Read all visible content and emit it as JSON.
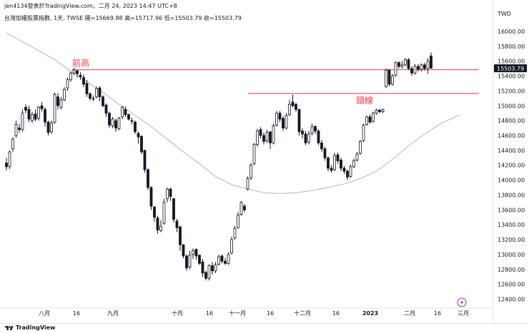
{
  "attribution": "jen4134發表於TradingView.com，二月 24, 2023 14:47 UTC+8",
  "symbol": {
    "name": "台灣加權股票指數",
    "interval": "1天",
    "exchange": "TWSE",
    "open_label": "開=",
    "open": "15669.88",
    "high_label": "高=",
    "high": "15717.96",
    "low_label": "低=",
    "low": "15503.79",
    "close_label": "收=",
    "close": "15503.79"
  },
  "footer": {
    "brand": "TradingView"
  },
  "colors": {
    "up_candle": "#ffffff",
    "down_candle": "#131722",
    "wick": "#131722",
    "moving_average": "#b2b5be",
    "annotation_line": "#f23645",
    "annotation_text": "#f23645",
    "price_tag": "#131722",
    "lightning_badge": "#9c27b0"
  },
  "chart_data": {
    "type": "candlestick",
    "currency": "TWD",
    "ylim": [
      12200,
      16300
    ],
    "yticks": [
      "16000.00",
      "15800.00",
      "15600.00",
      "15400.00",
      "15200.00",
      "15000.00",
      "14800.00",
      "14600.00",
      "14400.00",
      "14200.00",
      "14000.00",
      "13800.00",
      "13600.00",
      "13400.00",
      "13200.00",
      "13000.00",
      "12800.00",
      "12600.00",
      "12400.00"
    ],
    "xticks": [
      "八月",
      "16",
      "九月",
      "16",
      "十月",
      "16",
      "十一月",
      "16",
      "十二月",
      "16",
      "2023",
      "二月",
      "16",
      "三月"
    ],
    "last_price": "15503.79",
    "annotations": [
      {
        "label": "前高",
        "value": 15485,
        "from": 19,
        "to": 145
      },
      {
        "label": "頸線",
        "value": 15165,
        "from": 76,
        "to": 145
      }
    ],
    "moving_average": [
      [
        0,
        15980
      ],
      [
        5,
        15860
      ],
      [
        10,
        15740
      ],
      [
        15,
        15620
      ],
      [
        20,
        15460
      ],
      [
        25,
        15320
      ],
      [
        30,
        15180
      ],
      [
        35,
        15020
      ],
      [
        40,
        14870
      ],
      [
        45,
        14720
      ],
      [
        50,
        14550
      ],
      [
        55,
        14380
      ],
      [
        60,
        14220
      ],
      [
        65,
        14050
      ],
      [
        70,
        13940
      ],
      [
        75,
        13880
      ],
      [
        80,
        13830
      ],
      [
        85,
        13820
      ],
      [
        90,
        13830
      ],
      [
        95,
        13860
      ],
      [
        100,
        13900
      ],
      [
        105,
        13950
      ],
      [
        110,
        14020
      ],
      [
        115,
        14120
      ],
      [
        120,
        14280
      ],
      [
        125,
        14460
      ],
      [
        130,
        14620
      ],
      [
        135,
        14760
      ],
      [
        138,
        14820
      ],
      [
        141,
        14880
      ]
    ],
    "candles": [
      [
        14230,
        14180,
        14300,
        14130
      ],
      [
        14180,
        14380,
        14400,
        14150
      ],
      [
        14420,
        14550,
        14580,
        14380
      ],
      [
        14600,
        14750,
        14800,
        14570
      ],
      [
        14700,
        14680,
        14760,
        14640
      ],
      [
        14680,
        14900,
        14950,
        14650
      ],
      [
        14980,
        14940,
        15020,
        14900
      ],
      [
        14950,
        14820,
        15000,
        14780
      ],
      [
        14800,
        14880,
        14920,
        14770
      ],
      [
        14890,
        14820,
        14950,
        14790
      ],
      [
        14830,
        14980,
        15000,
        14800
      ],
      [
        15000,
        14960,
        15050,
        14920
      ],
      [
        14950,
        14780,
        14980,
        14720
      ],
      [
        14780,
        14640,
        14800,
        14600
      ],
      [
        14650,
        14770,
        14800,
        14620
      ],
      [
        14780,
        15150,
        15180,
        14760
      ],
      [
        15120,
        15000,
        15170,
        14950
      ],
      [
        14980,
        15080,
        15120,
        14950
      ],
      [
        15080,
        15220,
        15250,
        15060
      ],
      [
        15240,
        15350,
        15380,
        15200
      ],
      [
        15350,
        15440,
        15460,
        15320
      ],
      [
        15440,
        15480,
        15510,
        15410
      ],
      [
        15470,
        15430,
        15480,
        15380
      ],
      [
        15410,
        15390,
        15450,
        15350
      ],
      [
        15380,
        15290,
        15420,
        15250
      ],
      [
        15300,
        15160,
        15350,
        15120
      ],
      [
        15160,
        15100,
        15180,
        15070
      ],
      [
        15100,
        15090,
        15140,
        15060
      ],
      [
        15120,
        15230,
        15260,
        15100
      ],
      [
        15240,
        15120,
        15260,
        15060
      ],
      [
        15120,
        15000,
        15140,
        14980
      ],
      [
        15010,
        14900,
        15030,
        14850
      ],
      [
        14900,
        14740,
        14920,
        14700
      ],
      [
        14730,
        14820,
        14850,
        14700
      ],
      [
        14800,
        14700,
        14830,
        14650
      ],
      [
        14690,
        14830,
        14850,
        14670
      ],
      [
        14850,
        14980,
        15000,
        14820
      ],
      [
        14950,
        14880,
        14990,
        14850
      ],
      [
        14880,
        14820,
        14900,
        14800
      ],
      [
        14800,
        14790,
        14840,
        14750
      ],
      [
        14780,
        14650,
        14800,
        14620
      ],
      [
        14630,
        14580,
        14650,
        14490
      ],
      [
        14590,
        14380,
        14600,
        14350
      ],
      [
        14400,
        14140,
        14410,
        14100
      ],
      [
        14140,
        13900,
        14160,
        13870
      ],
      [
        13900,
        13650,
        13920,
        13600
      ],
      [
        13640,
        13500,
        13650,
        13440
      ],
      [
        13490,
        13330,
        13520,
        13280
      ],
      [
        13320,
        13380,
        13460,
        13300
      ],
      [
        13420,
        13700,
        13750,
        13400
      ],
      [
        13750,
        13880,
        13900,
        13700
      ],
      [
        13880,
        13780,
        13900,
        13720
      ],
      [
        13750,
        13470,
        13760,
        13430
      ],
      [
        13450,
        13360,
        13480,
        13300
      ],
      [
        13370,
        13130,
        13390,
        13050
      ],
      [
        13130,
        12980,
        13140,
        12950
      ],
      [
        12980,
        12820,
        13000,
        12780
      ],
      [
        12830,
        12990,
        13050,
        12800
      ],
      [
        13000,
        13050,
        13080,
        12940
      ],
      [
        13070,
        12980,
        13080,
        12930
      ],
      [
        12990,
        12880,
        13000,
        12860
      ],
      [
        12900,
        12750,
        12940,
        12700
      ],
      [
        12760,
        12680,
        12780,
        12650
      ],
      [
        12680,
        12850,
        12870,
        12650
      ],
      [
        12850,
        12780,
        12900,
        12730
      ],
      [
        12780,
        12860,
        12900,
        12750
      ],
      [
        12870,
        12970,
        13000,
        12850
      ],
      [
        12980,
        12910,
        13000,
        12880
      ],
      [
        12910,
        12880,
        12950,
        12860
      ],
      [
        12880,
        13000,
        13030,
        12860
      ],
      [
        13020,
        13200,
        13240,
        13000
      ],
      [
        13220,
        13350,
        13380,
        13200
      ],
      [
        13360,
        13530,
        13570,
        13350
      ],
      [
        13540,
        13700,
        13720,
        13520
      ],
      [
        13650,
        13600,
        13680,
        13570
      ],
      [
        13880,
        14020,
        14050,
        13860
      ],
      [
        14030,
        14200,
        14230,
        14000
      ],
      [
        14220,
        14480,
        14500,
        14200
      ],
      [
        14480,
        14660,
        14690,
        14450
      ],
      [
        14680,
        14600,
        14710,
        14560
      ],
      [
        14600,
        14520,
        14640,
        14480
      ],
      [
        14530,
        14640,
        14680,
        14500
      ],
      [
        14650,
        14500,
        14660,
        14420
      ],
      [
        14500,
        14730,
        14760,
        14480
      ],
      [
        14740,
        14900,
        14930,
        14720
      ],
      [
        14900,
        14820,
        14930,
        14780
      ],
      [
        14830,
        14700,
        14860,
        14660
      ],
      [
        14700,
        14870,
        14900,
        14680
      ],
      [
        14880,
        15020,
        15080,
        14860
      ],
      [
        15050,
        15000,
        15150,
        14980
      ],
      [
        15020,
        14950,
        15040,
        14920
      ],
      [
        14950,
        14650,
        14960,
        14600
      ],
      [
        14660,
        14620,
        14700,
        14560
      ],
      [
        14620,
        14500,
        14660,
        14470
      ],
      [
        14510,
        14620,
        14660,
        14480
      ],
      [
        14630,
        14720,
        14760,
        14600
      ],
      [
        14720,
        14660,
        14740,
        14620
      ],
      [
        14660,
        14500,
        14680,
        14470
      ],
      [
        14500,
        14420,
        14540,
        14380
      ],
      [
        14420,
        14300,
        14450,
        14260
      ],
      [
        14300,
        14160,
        14320,
        14120
      ],
      [
        14160,
        14130,
        14200,
        14100
      ],
      [
        14140,
        14330,
        14370,
        14120
      ],
      [
        14340,
        14260,
        14370,
        14220
      ],
      [
        14270,
        14160,
        14300,
        14120
      ],
      [
        14160,
        14120,
        14190,
        14080
      ],
      [
        14120,
        14040,
        14140,
        14000
      ],
      [
        14050,
        14180,
        14210,
        14030
      ],
      [
        14180,
        14260,
        14290,
        14160
      ],
      [
        14270,
        14350,
        14380,
        14250
      ],
      [
        14360,
        14520,
        14540,
        14340
      ],
      [
        14530,
        14740,
        14760,
        14510
      ],
      [
        14750,
        14850,
        14870,
        14730
      ],
      [
        14850,
        14780,
        14880,
        14760
      ],
      [
        14790,
        14900,
        14920,
        14770
      ],
      [
        14900,
        14940,
        14960,
        14880
      ],
      [
        14940,
        14920,
        14960,
        14900
      ],
      [
        14920,
        14950,
        14960,
        14900
      ],
      [
        15260,
        15480,
        15500,
        15240
      ],
      [
        15480,
        15290,
        15490,
        15260
      ],
      [
        15290,
        15400,
        15430,
        15270
      ],
      [
        15410,
        15580,
        15600,
        15390
      ],
      [
        15580,
        15530,
        15600,
        15500
      ],
      [
        15530,
        15550,
        15600,
        15500
      ],
      [
        15550,
        15620,
        15640,
        15530
      ],
      [
        15620,
        15500,
        15640,
        15480
      ],
      [
        15500,
        15440,
        15530,
        15400
      ],
      [
        15440,
        15530,
        15560,
        15420
      ],
      [
        15530,
        15490,
        15560,
        15460
      ],
      [
        15490,
        15550,
        15570,
        15460
      ],
      [
        15550,
        15500,
        15580,
        15470
      ],
      [
        15500,
        15600,
        15640,
        15430
      ],
      [
        15669.88,
        15503.79,
        15717.96,
        15503.79
      ]
    ]
  }
}
